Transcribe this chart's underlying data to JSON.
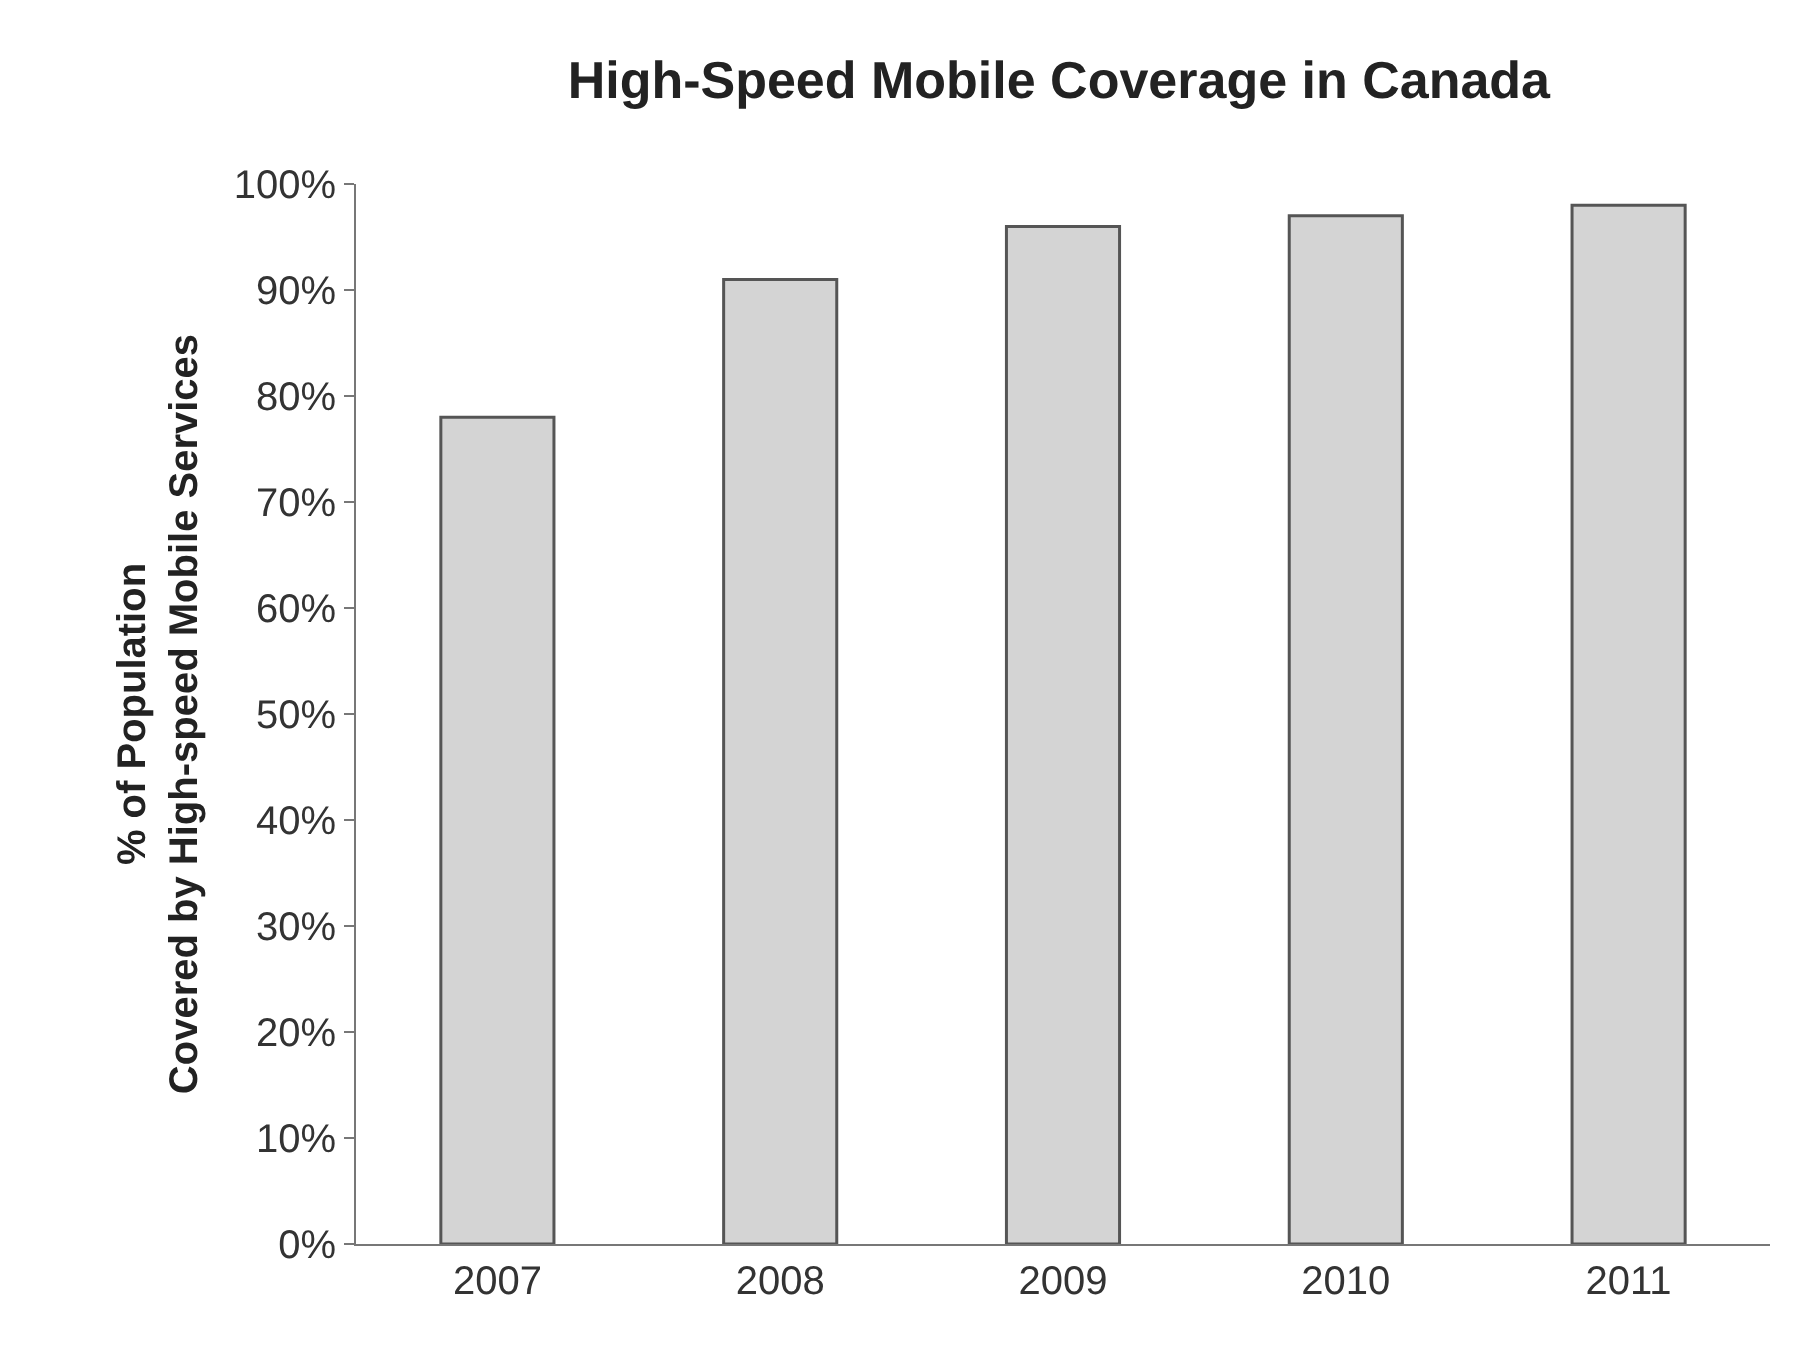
{
  "chart_data": {
    "type": "bar",
    "title": "High-Speed Mobile Coverage in Canada",
    "ylabel": "% of Population\nCovered by High-speed Mobile Services",
    "categories": [
      "2007",
      "2008",
      "2009",
      "2010",
      "2011"
    ],
    "values": [
      78,
      91,
      96,
      97,
      98
    ],
    "color": "#d4d4d4",
    "ylim": [
      0,
      100
    ],
    "yticks": [
      {
        "value": 0,
        "label": "0%"
      },
      {
        "value": 10,
        "label": "10%"
      },
      {
        "value": 20,
        "label": "20%"
      },
      {
        "value": 30,
        "label": "30%"
      },
      {
        "value": 40,
        "label": "40%"
      },
      {
        "value": 50,
        "label": "50%"
      },
      {
        "value": 60,
        "label": "60%"
      },
      {
        "value": 70,
        "label": "70%"
      },
      {
        "value": 80,
        "label": "80%"
      },
      {
        "value": 90,
        "label": "90%"
      },
      {
        "value": 100,
        "label": "100%"
      }
    ],
    "grid": false
  }
}
